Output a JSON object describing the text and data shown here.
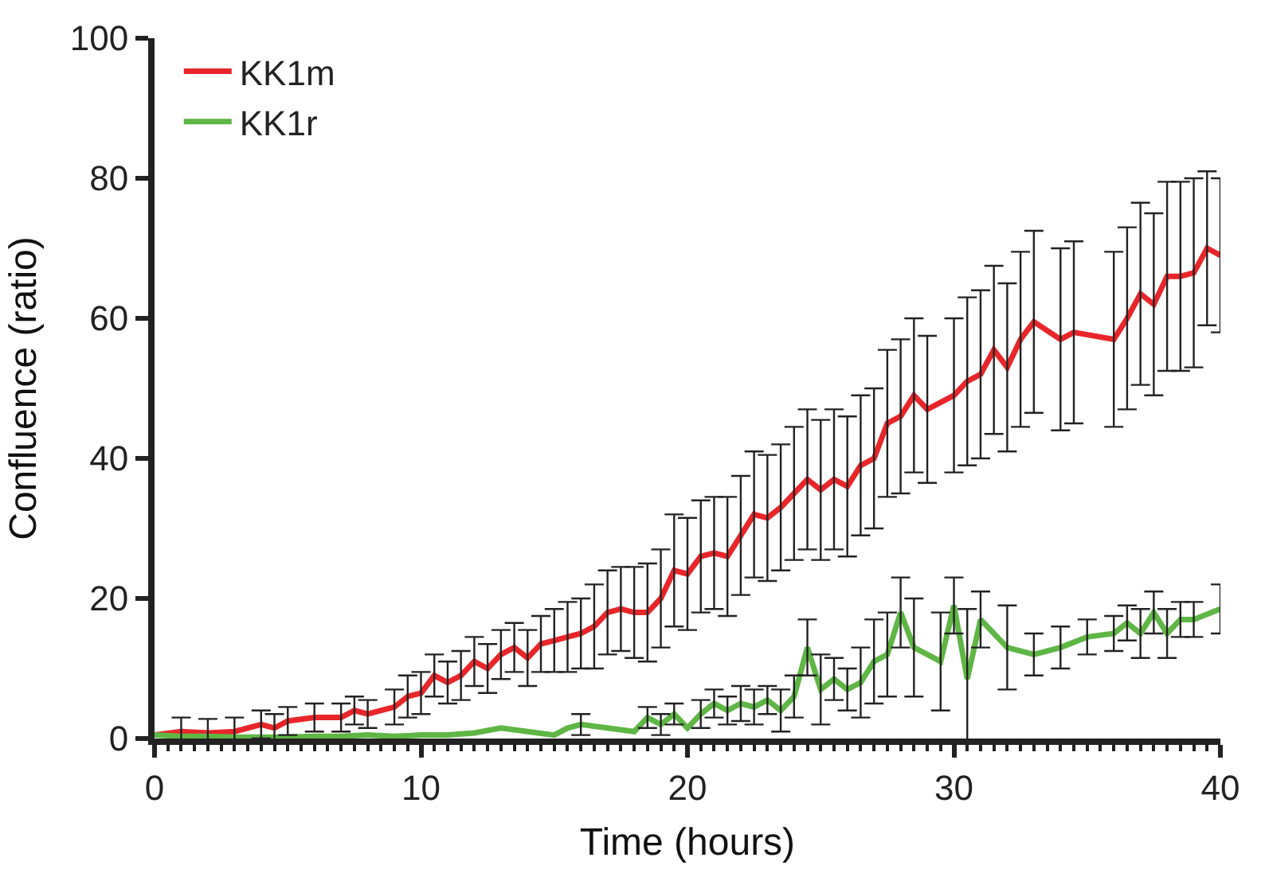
{
  "chart_data": {
    "type": "line",
    "xlabel": "Time (hours)",
    "ylabel": "Confluence (ratio)",
    "xlim": [
      0,
      40
    ],
    "xticks": [
      0,
      10,
      20,
      30,
      40
    ],
    "ylim": [
      0,
      100
    ],
    "yticks": [
      0,
      20,
      40,
      60,
      80,
      100
    ],
    "legend": "top left",
    "marker": "none",
    "line_style": "solid",
    "series": [
      {
        "name": "KK1m",
        "color": "#e8262a",
        "x": [
          0,
          1,
          2,
          3,
          4,
          4.5,
          5,
          6,
          7,
          7.5,
          8,
          9,
          9.5,
          10,
          10.5,
          11,
          11.5,
          12,
          12.5,
          13,
          13.5,
          14,
          14.5,
          15,
          15.5,
          16,
          16.5,
          17,
          17.5,
          18,
          18.5,
          19,
          19.5,
          20,
          20.5,
          21,
          21.5,
          22,
          22.5,
          23,
          23.5,
          24,
          24.5,
          25,
          25.5,
          26,
          26.5,
          27,
          27.5,
          28,
          28.5,
          29,
          30,
          30.5,
          31,
          31.5,
          32,
          32.5,
          33,
          34,
          34.5,
          36,
          36.5,
          37,
          37.5,
          38,
          38.5,
          39,
          39.5,
          40
        ],
        "values": [
          0.5,
          1,
          0.8,
          1,
          2,
          1.5,
          2.5,
          3,
          3,
          4,
          3.5,
          4.5,
          6,
          6.5,
          9,
          8,
          9,
          11,
          10,
          12,
          13,
          11.5,
          13.5,
          14,
          14.5,
          15,
          16,
          18,
          18.5,
          18,
          18,
          20,
          24,
          23.5,
          26,
          26.5,
          26,
          29,
          32,
          31.5,
          33,
          35,
          37,
          35.5,
          37,
          36,
          39,
          40,
          45,
          46,
          49,
          47,
          49,
          51,
          52,
          55.5,
          53,
          57,
          59.5,
          57,
          58,
          57,
          60,
          63.5,
          62,
          66,
          66,
          66.5,
          70,
          69
        ],
        "errors": [
          null,
          2,
          2,
          2,
          2,
          2,
          2,
          2,
          2,
          2,
          2,
          2.5,
          3,
          3,
          3,
          3,
          3.5,
          3.5,
          3.5,
          3.5,
          3.5,
          4,
          4,
          4.5,
          5,
          5,
          6,
          6,
          6,
          6.5,
          7,
          7,
          8,
          8,
          8,
          8,
          8.5,
          8.5,
          9,
          9,
          9,
          9.5,
          10,
          10,
          10,
          10,
          10,
          10,
          10.5,
          11,
          11,
          10.5,
          11,
          12,
          12,
          12,
          12,
          12.5,
          13,
          13,
          13,
          12.5,
          13,
          13,
          13,
          13.5,
          13.5,
          13.5,
          11,
          11
        ]
      },
      {
        "name": "KK1r",
        "color": "#5fb645",
        "x": [
          0,
          1,
          2,
          3,
          4,
          5,
          6,
          7,
          8,
          9,
          10,
          11,
          12,
          13,
          14,
          15,
          15.5,
          16,
          17,
          18,
          18.5,
          19,
          19.5,
          20,
          20.5,
          21,
          21.5,
          22,
          22.5,
          23,
          23.5,
          24,
          24.5,
          25,
          25.5,
          26,
          26.5,
          27,
          27.5,
          28,
          28.5,
          29.5,
          30,
          30.5,
          31,
          32,
          33,
          34,
          35,
          36,
          36.5,
          37,
          37.5,
          38,
          38.5,
          39,
          40
        ],
        "values": [
          0.5,
          0.3,
          0.3,
          0.2,
          0.2,
          0.2,
          0.3,
          0.3,
          0.5,
          0.3,
          0.5,
          0.5,
          0.8,
          1.5,
          1,
          0.5,
          1.5,
          2,
          1.5,
          1,
          3,
          2,
          3.5,
          1.5,
          3.5,
          5,
          4,
          5,
          4.5,
          5.5,
          4,
          6,
          13,
          7,
          8.5,
          7,
          8,
          11,
          12,
          18,
          13,
          11,
          19,
          8.5,
          17,
          13,
          12,
          13,
          14.5,
          15,
          16.5,
          15,
          18,
          15,
          17,
          17,
          18.5
        ],
        "errors": [
          null,
          null,
          null,
          null,
          null,
          null,
          null,
          null,
          null,
          null,
          null,
          null,
          null,
          null,
          null,
          null,
          null,
          1.5,
          null,
          null,
          1.5,
          1.5,
          1.5,
          null,
          2,
          2,
          2,
          2.5,
          2.5,
          2,
          3,
          3,
          4,
          5,
          3,
          3,
          5,
          6,
          6,
          5,
          7,
          7,
          4,
          10,
          4,
          6,
          3,
          3,
          2.5,
          2.5,
          2.5,
          3.5,
          3,
          3.5,
          2.5,
          2.5,
          3.5
        ]
      }
    ]
  }
}
